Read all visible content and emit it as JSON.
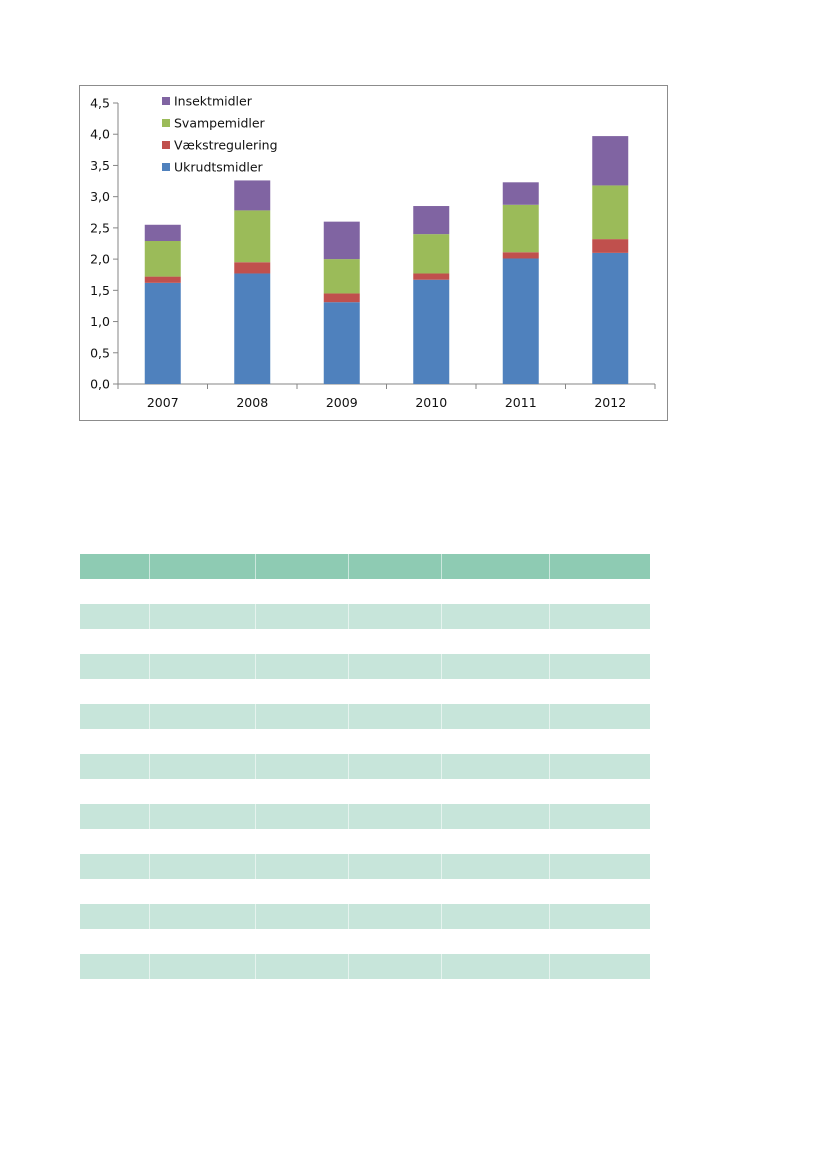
{
  "chart_data": {
    "type": "bar",
    "stacked": true,
    "categories": [
      "2007",
      "2008",
      "2009",
      "2010",
      "2011",
      "2012"
    ],
    "series": [
      {
        "name": "Ukrudtsmidler",
        "color": "#4f81bd",
        "values": [
          1.62,
          1.77,
          1.31,
          1.67,
          2.01,
          2.1
        ]
      },
      {
        "name": "Vækstregulering",
        "color": "#c0504d",
        "values": [
          0.1,
          0.18,
          0.14,
          0.1,
          0.1,
          0.22
        ]
      },
      {
        "name": "Svampemidler",
        "color": "#9bbb59",
        "values": [
          0.57,
          0.83,
          0.55,
          0.63,
          0.76,
          0.86
        ]
      },
      {
        "name": "Insektmidler",
        "color": "#8064a2",
        "values": [
          0.26,
          0.48,
          0.6,
          0.45,
          0.36,
          0.79
        ]
      }
    ],
    "yticks": [
      "0,0",
      "0,5",
      "1,0",
      "1,5",
      "2,0",
      "2,5",
      "3,0",
      "3,5",
      "4,0",
      "4,5"
    ],
    "ylim": [
      0,
      4.5
    ],
    "legend_position": "top-left",
    "grid": false
  },
  "table": {
    "rows": 17,
    "columns": 6
  }
}
